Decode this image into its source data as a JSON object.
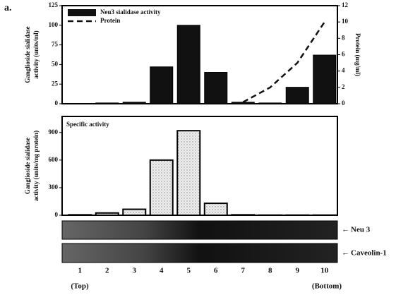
{
  "panel_label": "a.",
  "chart_data": [
    {
      "type": "bar",
      "categories": [
        "1",
        "2",
        "3",
        "4",
        "5",
        "6",
        "7",
        "8",
        "9",
        "10"
      ],
      "ylabel": [
        "Ganglioside sialidase",
        "activity (units/ml)"
      ],
      "y2label": "Protein (mg/ml)",
      "ylim": [
        0,
        125
      ],
      "yticks": [
        0,
        25,
        50,
        75,
        100,
        125
      ],
      "y2lim": [
        0,
        12
      ],
      "y2ticks": [
        0,
        2,
        4,
        6,
        8,
        10,
        12
      ],
      "series": [
        {
          "name": "Neu3 sialidase activity",
          "color": "#111111",
          "values": [
            0,
            1,
            2,
            47,
            100,
            40,
            2,
            1,
            21,
            62
          ]
        },
        {
          "name": "Protein",
          "color": "#111111",
          "type": "line",
          "axis": "y2",
          "values": [
            null,
            null,
            null,
            null,
            null,
            null,
            0.2,
            2,
            5,
            10
          ]
        }
      ]
    },
    {
      "type": "bar",
      "categories": [
        "1",
        "2",
        "3",
        "4",
        "5",
        "6",
        "7",
        "8",
        "9",
        "10"
      ],
      "ylabel": [
        "Ganglioside sialidase",
        "activity (units/mg protein)"
      ],
      "ylim": [
        0,
        1075
      ],
      "yticks": [
        0,
        300,
        600,
        900
      ],
      "series": [
        {
          "name": "Specific activity",
          "color": "#e4e4e4",
          "values": [
            5,
            25,
            65,
            600,
            920,
            130,
            5,
            2,
            2,
            2
          ]
        }
      ]
    }
  ],
  "blots": [
    "Neu 3",
    "Caveolin-1"
  ],
  "x_notes": [
    "(Top)",
    "(Bottom)"
  ]
}
